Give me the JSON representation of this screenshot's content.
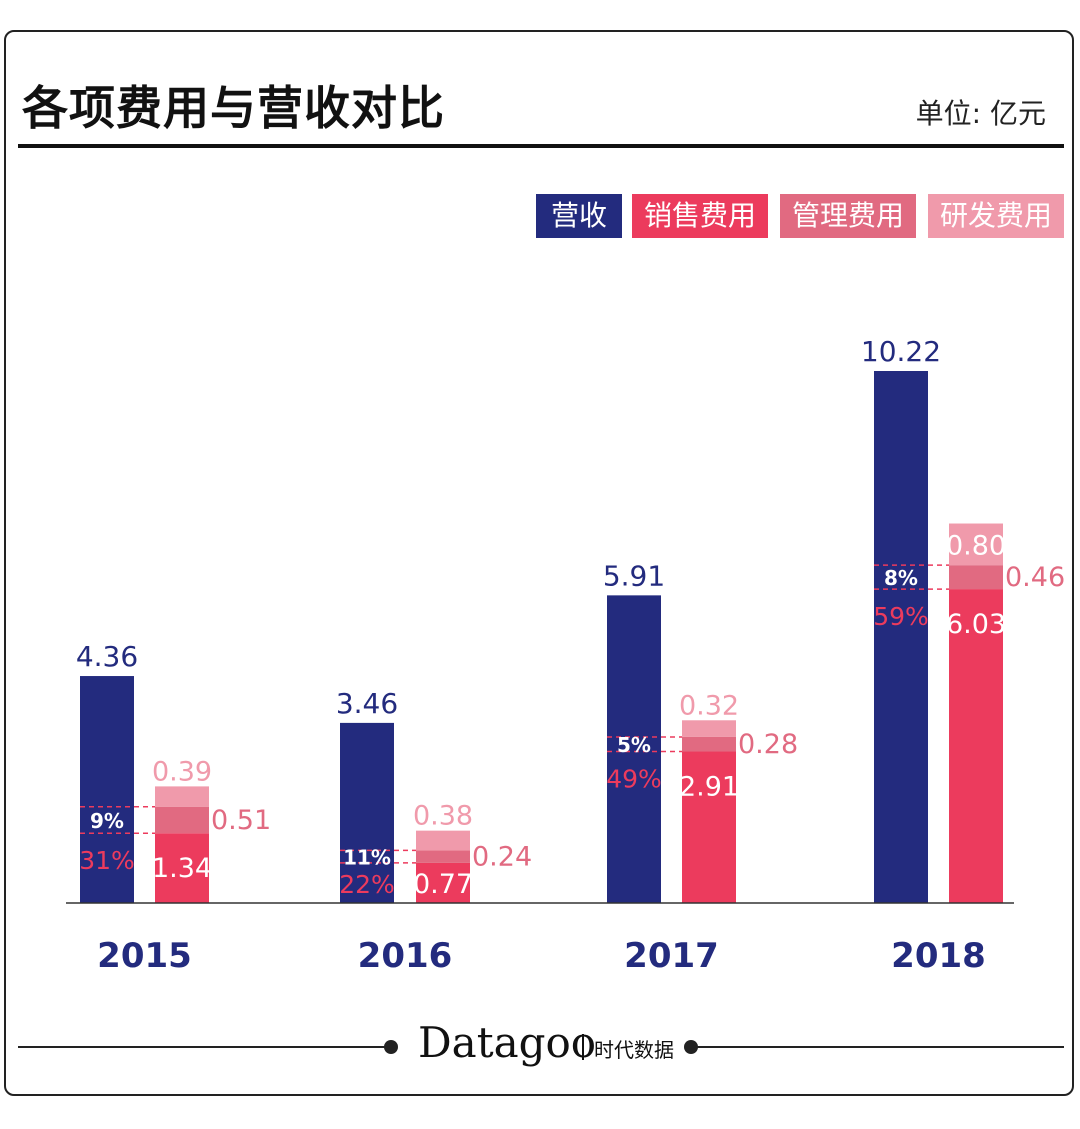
{
  "title": "各项费用与营收对比",
  "unit": "单位: 亿元",
  "colors": {
    "revenue": "#232b7e",
    "sales": "#ec3b5d",
    "admin": "#e16a81",
    "rd": "#f09aab",
    "axis": "#333333"
  },
  "legend": [
    {
      "label": "营收",
      "color": "#232b7e"
    },
    {
      "label": "销售费用",
      "color": "#ec3b5d"
    },
    {
      "label": "管理费用",
      "color": "#e16a81"
    },
    {
      "label": "研发费用",
      "color": "#f09aab"
    }
  ],
  "chart_data": {
    "type": "bar",
    "title": "各项费用与营收对比",
    "categories": [
      "2015",
      "2016",
      "2017",
      "2018"
    ],
    "series": [
      {
        "name": "营收",
        "values": [
          4.36,
          3.46,
          5.91,
          10.22
        ]
      },
      {
        "name": "销售费用",
        "values": [
          1.34,
          0.77,
          2.91,
          6.03
        ]
      },
      {
        "name": "管理费用",
        "values": [
          0.51,
          0.24,
          0.28,
          0.46
        ]
      },
      {
        "name": "研发费用",
        "values": [
          0.39,
          0.38,
          0.32,
          0.8
        ]
      }
    ],
    "sales_ratio_labels": [
      "31%",
      "22%",
      "49%",
      "59%"
    ],
    "admin_ratio_labels": [
      "9%",
      "11%",
      "5%",
      "8%"
    ],
    "value_labels": {
      "revenue": [
        "4.36",
        "3.46",
        "5.91",
        "10.22"
      ],
      "sales": [
        "1.34",
        "0.77",
        "2.91",
        "6.03"
      ],
      "admin": [
        "0.51",
        "0.24",
        "0.28",
        "0.46"
      ],
      "rd": [
        "0.39",
        "0.38",
        "0.32",
        "0.80"
      ]
    },
    "ylim": [
      0,
      10.22
    ],
    "grid": false,
    "legend_position": "top-right"
  },
  "footer": {
    "brand": "Datagoo",
    "brand_cn": "时代数据"
  }
}
